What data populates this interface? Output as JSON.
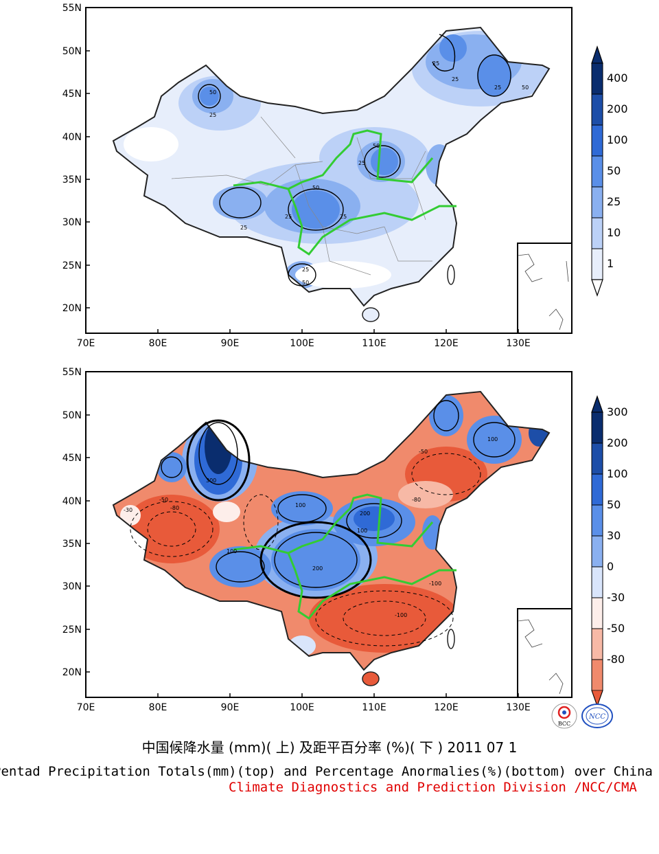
{
  "top_map": {
    "lat_labels": [
      "55N",
      "50N",
      "45N",
      "40N",
      "35N",
      "30N",
      "25N",
      "20N"
    ],
    "lon_labels": [
      "70E",
      "80E",
      "90E",
      "100E",
      "110E",
      "120E",
      "130E"
    ],
    "colorbar": {
      "labels": [
        "400",
        "200",
        "100",
        "50",
        "25",
        "10",
        "1"
      ],
      "colors": [
        "#0a2d6e",
        "#1d4ea8",
        "#2f6ad6",
        "#5a8fe8",
        "#8ab0f0",
        "#bcd1f7",
        "#e7eefb",
        "#ffffff"
      ]
    },
    "contour_labels": [
      "50",
      "25",
      "25",
      "50",
      "25",
      "25",
      "25",
      "50",
      "25",
      "25",
      "50",
      "25",
      "25",
      "50"
    ]
  },
  "bottom_map": {
    "lat_labels": [
      "55N",
      "50N",
      "45N",
      "40N",
      "35N",
      "30N",
      "25N",
      "20N"
    ],
    "lon_labels": [
      "70E",
      "80E",
      "90E",
      "100E",
      "110E",
      "120E",
      "130E"
    ],
    "colorbar": {
      "labels": [
        "300",
        "200",
        "100",
        "50",
        "30",
        "0",
        "-30",
        "-50",
        "-80"
      ],
      "colors": [
        "#0a2d6e",
        "#1d4ea8",
        "#2f6ad6",
        "#5a8fe8",
        "#8ab0f0",
        "#d9e5fb",
        "#fdeeea",
        "#f7b9a6",
        "#f08a6c",
        "#e85a3a"
      ]
    },
    "contour_labels": [
      "300",
      "200",
      "100",
      "-100",
      "-50",
      "-80",
      "200",
      "100",
      "-100",
      "100",
      "-30",
      "-50",
      "-80",
      "100"
    ]
  },
  "logos": {
    "left": "BCC",
    "right": "NCC"
  },
  "title_cn": "中国候降水量 (mm)( 上) 及距平百分率 (%)( 下 ) 2011 07 1",
  "title_en": "Pentad Precipitation Totals(mm)(top) and Percentage Anormalies(%)(bottom) over China",
  "credit": "Climate Diagnostics and Prediction Division /NCC/CMA"
}
